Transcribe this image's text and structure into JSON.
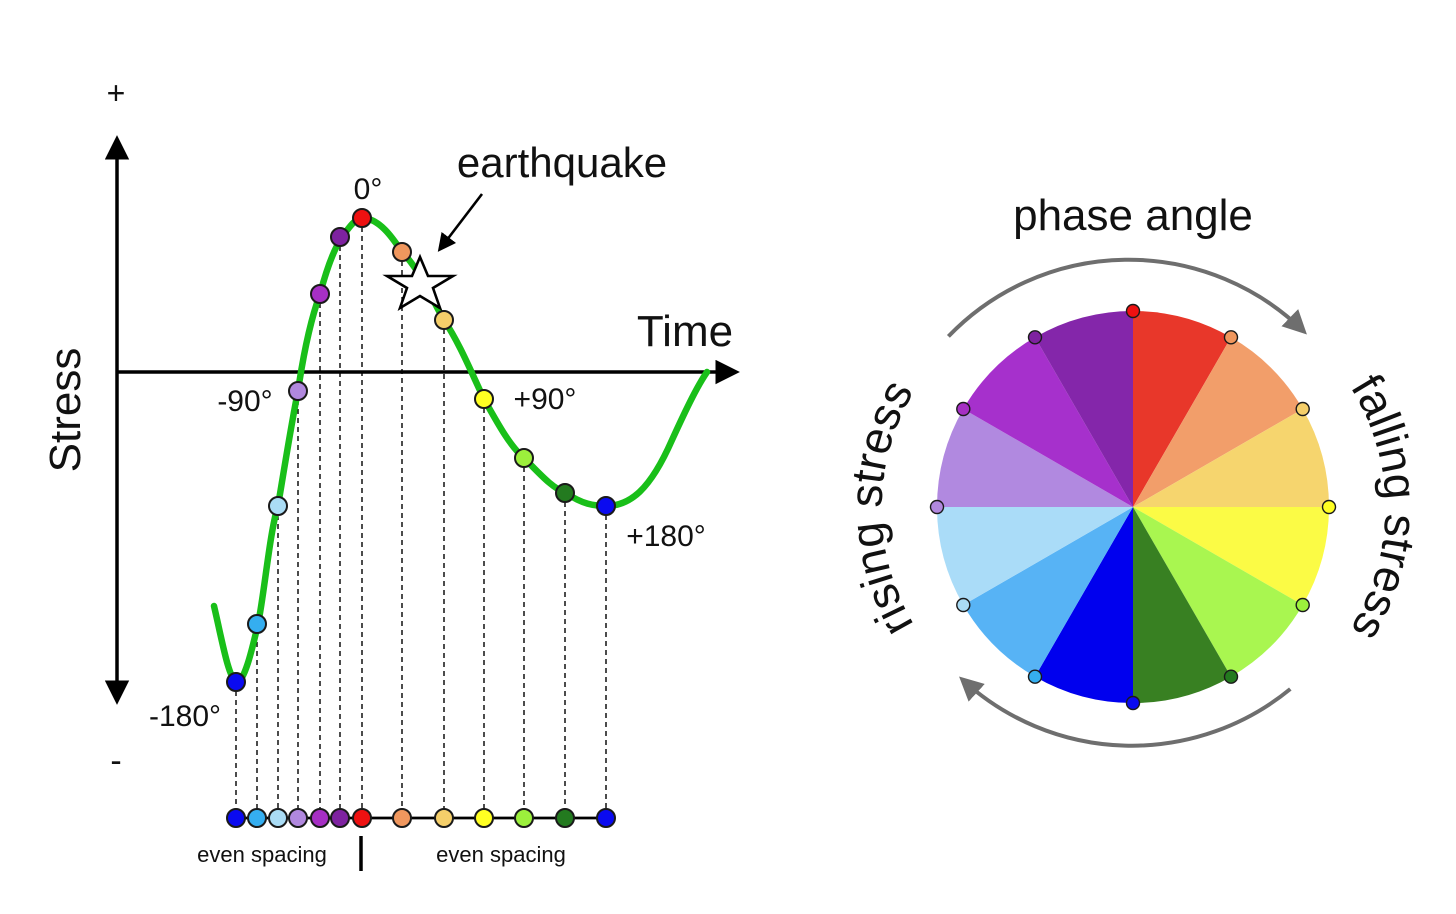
{
  "stress_plot": {
    "plus_sign": "+",
    "minus_sign": "-",
    "y_axis_label": "Stress",
    "x_axis_label": "Time",
    "earthquake_label": "earthquake",
    "angle_labels": {
      "zero": "0°",
      "minus90": "-90°",
      "plus90": "+90°",
      "minus180": "-180°",
      "plus180": "+180°"
    },
    "spacing_label_left": "even spacing",
    "spacing_label_right": "even spacing",
    "curve_color": "#19bf19",
    "phase_points": [
      {
        "phase": -180,
        "color": "#0a0af0"
      },
      {
        "phase": -150,
        "color": "#35aef0"
      },
      {
        "phase": -120,
        "color": "#aadcf5"
      },
      {
        "phase": -90,
        "color": "#b188de"
      },
      {
        "phase": -60,
        "color": "#a62fc4"
      },
      {
        "phase": -30,
        "color": "#7e22a0"
      },
      {
        "phase": 0,
        "color": "#ee1111"
      },
      {
        "phase": 30,
        "color": "#f0975e"
      },
      {
        "phase": 60,
        "color": "#f5cf6a"
      },
      {
        "phase": 90,
        "color": "#ffff22"
      },
      {
        "phase": 120,
        "color": "#9cf03c"
      },
      {
        "phase": 150,
        "color": "#237a1f"
      },
      {
        "phase": 180,
        "color": "#0a0af0"
      }
    ]
  },
  "phase_wheel": {
    "title": "phase angle",
    "left_arc_label": "rising stress",
    "right_arc_label": "falling stress",
    "arrow_color": "#6e6e6e",
    "sectors": [
      {
        "from": 0,
        "to": 30,
        "color": "#e8372a"
      },
      {
        "from": 30,
        "to": 60,
        "color": "#f29e6a"
      },
      {
        "from": 60,
        "to": 90,
        "color": "#f6d56e"
      },
      {
        "from": 90,
        "to": 120,
        "color": "#fbfb45"
      },
      {
        "from": 120,
        "to": 150,
        "color": "#a9f650"
      },
      {
        "from": 150,
        "to": 180,
        "color": "#388022"
      },
      {
        "from": 180,
        "to": 210,
        "color": "#0000ee"
      },
      {
        "from": 210,
        "to": 240,
        "color": "#57b3f5"
      },
      {
        "from": 240,
        "to": 270,
        "color": "#aadcf8"
      },
      {
        "from": 270,
        "to": 300,
        "color": "#b189e0"
      },
      {
        "from": 300,
        "to": 330,
        "color": "#a630cc"
      },
      {
        "from": 330,
        "to": 360,
        "color": "#8426aa"
      }
    ],
    "markers": [
      {
        "angle": 0,
        "color": "#ee1111"
      },
      {
        "angle": 30,
        "color": "#f0975e"
      },
      {
        "angle": 60,
        "color": "#f5cf6a"
      },
      {
        "angle": 90,
        "color": "#ffff22"
      },
      {
        "angle": 120,
        "color": "#9cf03c"
      },
      {
        "angle": 150,
        "color": "#237a1f"
      },
      {
        "angle": 180,
        "color": "#0a0af0"
      },
      {
        "angle": 210,
        "color": "#35aef0"
      },
      {
        "angle": 240,
        "color": "#aadcf5"
      },
      {
        "angle": 270,
        "color": "#b188de"
      },
      {
        "angle": 300,
        "color": "#a62fc4"
      },
      {
        "angle": 330,
        "color": "#7e22a0"
      }
    ]
  }
}
